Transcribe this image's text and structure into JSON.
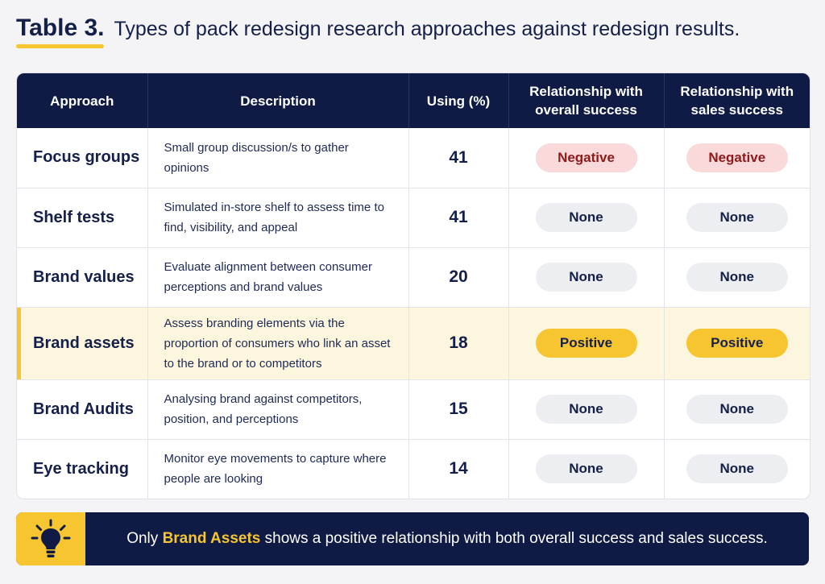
{
  "title": {
    "label": "Table 3.",
    "text": "Types of pack redesign research approaches against redesign results."
  },
  "table": {
    "headers": {
      "approach": "Approach",
      "description": "Description",
      "using": "Using (%)",
      "overall_line1": "Relationship with",
      "overall_line2": "overall success",
      "sales_line1": "Relationship with",
      "sales_line2": "sales success"
    },
    "rows": [
      {
        "approach": "Focus groups",
        "description": "Small group discussion/s to gather opinions",
        "using": "41",
        "overall": "Negative",
        "sales": "Negative"
      },
      {
        "approach": "Shelf tests",
        "description": "Simulated in-store shelf to assess time to find, visibility, and appeal",
        "using": "41",
        "overall": "None",
        "sales": "None"
      },
      {
        "approach": "Brand values",
        "description": "Evaluate alignment between consumer perceptions and brand values",
        "using": "20",
        "overall": "None",
        "sales": "None"
      },
      {
        "approach": "Brand assets",
        "description": "Assess branding elements via the proportion of consumers who link an asset to the brand or to competitors",
        "using": "18",
        "overall": "Positive",
        "sales": "Positive"
      },
      {
        "approach": "Brand Audits",
        "description": "Analysing brand against competitors, position, and perceptions",
        "using": "15",
        "overall": "None",
        "sales": "None"
      },
      {
        "approach": "Eye tracking",
        "description": "Monitor eye movements to capture where people are looking",
        "using": "14",
        "overall": "None",
        "sales": "None"
      }
    ]
  },
  "callout": {
    "icon": "lightbulb-icon",
    "prefix": "Only ",
    "highlight": "Brand Assets",
    "suffix": " shows a positive relationship with both overall success and sales success."
  },
  "colors": {
    "navy": "#0f1a45",
    "accent_yellow": "#f7c530",
    "negative_bg": "#f9d9d9",
    "negative_text": "#8e1a1a",
    "neutral_bg": "#eceef2",
    "highlight_row": "#fdf6de"
  }
}
